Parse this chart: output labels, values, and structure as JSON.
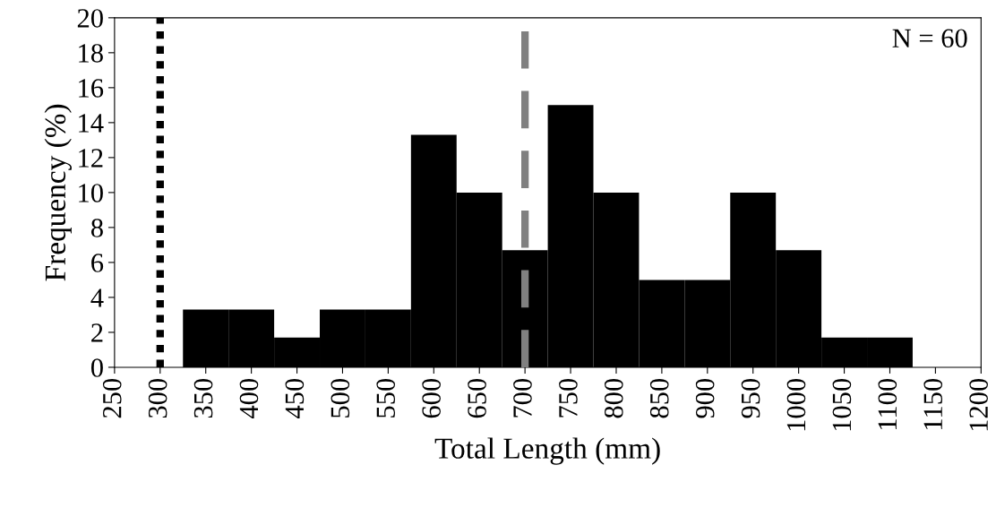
{
  "chart_data": {
    "type": "histogram",
    "xlabel": "Total Length (mm)",
    "ylabel": "Frequency (%)",
    "bins": [
      325,
      375,
      425,
      475,
      525,
      575,
      625,
      675,
      725,
      775,
      825,
      875,
      925,
      975,
      1025,
      1075,
      1125
    ],
    "values": [
      3.3,
      3.3,
      1.7,
      3.3,
      3.3,
      13.3,
      10,
      6.7,
      15,
      10,
      5,
      5,
      10,
      6.7,
      1.7,
      1.7
    ],
    "color": "#000000",
    "xlim": [
      250,
      1200
    ],
    "xticks": [
      250,
      300,
      350,
      400,
      450,
      500,
      550,
      600,
      650,
      700,
      750,
      800,
      850,
      900,
      950,
      1000,
      1050,
      1100,
      1150,
      1200
    ],
    "ylim": [
      0,
      20
    ],
    "yticks": [
      0,
      2,
      4,
      6,
      8,
      10,
      12,
      14,
      16,
      18,
      20
    ],
    "ref_lines": [
      {
        "axis": "x",
        "value": 300,
        "color": "#000000",
        "line_style": "dotted"
      },
      {
        "axis": "x",
        "value": 700,
        "color": "#808080",
        "line_style": "dashed"
      }
    ],
    "annotations": [
      "N = 60"
    ],
    "grid": false
  }
}
